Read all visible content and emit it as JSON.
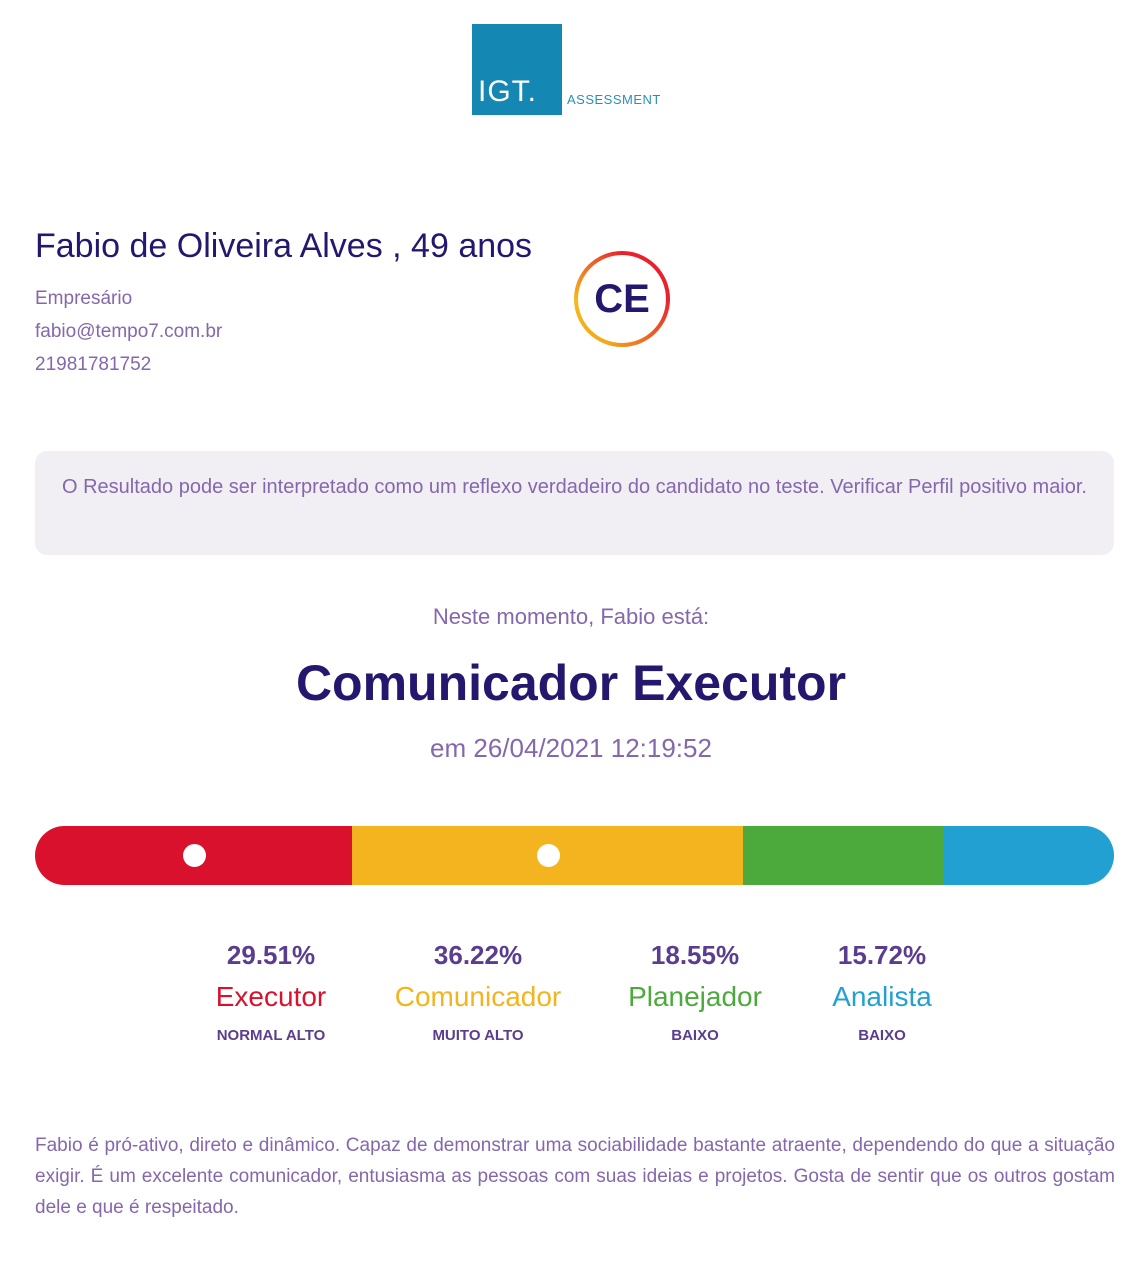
{
  "logo": {
    "mark": "IGT.",
    "sub": "ASSESSMENT"
  },
  "person": {
    "name": "Fabio de Oliveira Alves , 49 anos",
    "role": "Empresário",
    "email": "fabio@tempo7.com.br",
    "phone": "21981781752"
  },
  "badge": {
    "label": "CE"
  },
  "notice": "O Resultado pode ser interpretado como um reflexo verdadeiro do candidato no teste. Verificar Perfil positivo maior.",
  "result": {
    "intro": "Neste momento, Fabio está:",
    "profile": "Comunicador Executor",
    "timestamp": "em 26/04/2021 12:19:52"
  },
  "traits": [
    {
      "pct": "29.51%",
      "name": "Executor",
      "level": "NORMAL ALTO",
      "color": "#d9112c",
      "value": 29.51
    },
    {
      "pct": "36.22%",
      "name": "Comunicador",
      "level": "MUITO ALTO",
      "color": "#f4b41f",
      "value": 36.22
    },
    {
      "pct": "18.55%",
      "name": "Planejador",
      "level": "BAIXO",
      "color": "#4caa3c",
      "value": 18.55
    },
    {
      "pct": "15.72%",
      "name": "Analista",
      "level": "BAIXO",
      "color": "#22a0d2",
      "value": 15.72
    }
  ],
  "description": "Fabio é pró-ativo, direto e dinâmico. Capaz de demonstrar uma sociabilidade bastante atraente, dependendo do que a situação exigir. É um excelente comunicador, entusiasma as pessoas com suas ideias e projetos. Gosta de sentir que os outros gostam dele e que é respeitado."
}
